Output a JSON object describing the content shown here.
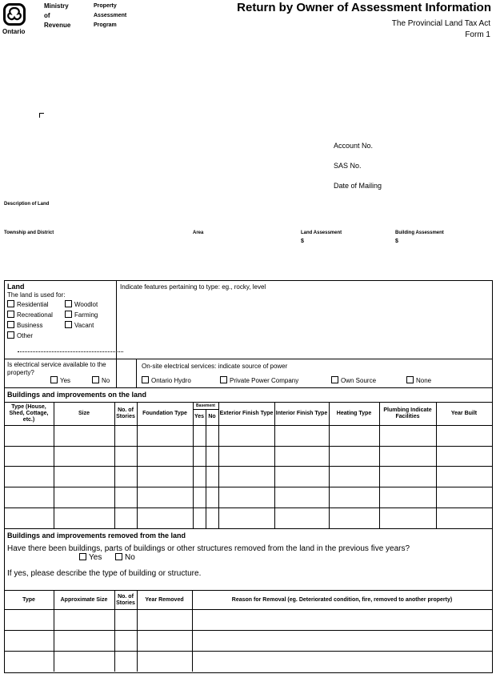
{
  "header": {
    "province": "Ontario",
    "ministry": [
      "Ministry",
      "of",
      "Revenue"
    ],
    "program": [
      "Property",
      "Assessment",
      "Program"
    ],
    "title": "Return by Owner of Assessment Information",
    "act": "The Provincial Land Tax Act",
    "form": "Form 1"
  },
  "account": {
    "account_no": "Account No.",
    "sas_no": "SAS No.",
    "date_of_mailing": "Date of Mailing"
  },
  "description": {
    "label": "Description of Land",
    "township": "Township and District",
    "area": "Area",
    "land_assessment": "Land Assessment",
    "building_assessment": "Building Assessment",
    "currency": "$"
  },
  "land": {
    "title": "Land",
    "used_for": "The land is used for:",
    "options": [
      "Residential",
      "Woodlot",
      "Recreational",
      "Farming",
      "Business",
      "Vacant",
      "Other"
    ],
    "features": "Indicate features pertaining to type:  eg., rocky, level",
    "electrical_q": "Is electrical service  available to the property?",
    "yes": "Yes",
    "no": "No",
    "onsite": "On-site electrical services: indicate source of power",
    "power": [
      "Ontario Hydro",
      "Private Power Company",
      "Own Source",
      "None"
    ]
  },
  "buildings": {
    "title": "Buildings and improvements on the land",
    "headers": [
      "Type (House, Shed, Cottage, etc.)",
      "Size",
      "No. of Stories",
      "Foundation Type",
      "Basement",
      "Exterior Finish Type",
      "Interior Finish Type",
      "Heating Type",
      "Plumbing Indicate Facilities",
      "Year Built"
    ],
    "basement_yes": "Yes",
    "basement_no": "No"
  },
  "removed": {
    "title": "Buildings and improvements removed from the land",
    "question": "Have there been buildings, parts of buildings or other structures removed from the land in the previous five years?",
    "yes": "Yes",
    "no": "No",
    "describe": "If yes, please describe the type of building or structure.",
    "headers": [
      "Type",
      "Approximate Size",
      "No. of Stories",
      "Year Removed",
      "Reason for Removal (eg. Deteriorated condition, fire, removed to  another property)"
    ]
  }
}
